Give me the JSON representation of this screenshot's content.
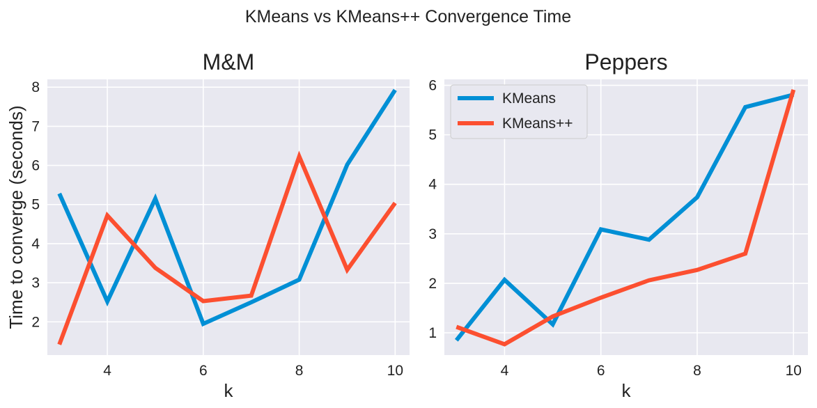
{
  "figure": {
    "suptitle": "KMeans vs KMeans++ Convergence Time"
  },
  "chart_data": [
    {
      "type": "line",
      "title": "M&M",
      "xlabel": "k",
      "ylabel": "Time to converge (seconds)",
      "x": [
        3,
        4,
        5,
        6,
        7,
        8,
        9,
        10
      ],
      "xlim": [
        2.75,
        10.3
      ],
      "ylim": [
        1.15,
        8.2
      ],
      "xticks": [
        4,
        6,
        8,
        10
      ],
      "yticks": [
        2,
        3,
        4,
        5,
        6,
        7,
        8
      ],
      "grid": true,
      "legend": null,
      "series": [
        {
          "name": "KMeans",
          "color": "#008fd5",
          "values": [
            5.28,
            2.52,
            5.15,
            1.95,
            2.5,
            3.08,
            6.02,
            7.93
          ]
        },
        {
          "name": "KMeans++",
          "color": "#fc4f30",
          "values": [
            1.42,
            4.72,
            3.38,
            2.53,
            2.67,
            6.23,
            3.33,
            5.04
          ]
        }
      ]
    },
    {
      "type": "line",
      "title": "Peppers",
      "xlabel": "k",
      "ylabel": "",
      "x": [
        3,
        4,
        5,
        6,
        7,
        8,
        9,
        10
      ],
      "xlim": [
        2.75,
        10.3
      ],
      "ylim": [
        0.55,
        6.12
      ],
      "xticks": [
        4,
        6,
        8,
        10
      ],
      "yticks": [
        1,
        2,
        3,
        4,
        5,
        6
      ],
      "grid": true,
      "legend": "upper left",
      "series": [
        {
          "name": "KMeans",
          "color": "#008fd5",
          "values": [
            0.85,
            2.07,
            1.17,
            3.09,
            2.88,
            3.74,
            5.56,
            5.81
          ]
        },
        {
          "name": "KMeans++",
          "color": "#fc4f30",
          "values": [
            1.12,
            0.77,
            1.33,
            1.71,
            2.06,
            2.27,
            2.6,
            5.91
          ]
        }
      ]
    }
  ]
}
